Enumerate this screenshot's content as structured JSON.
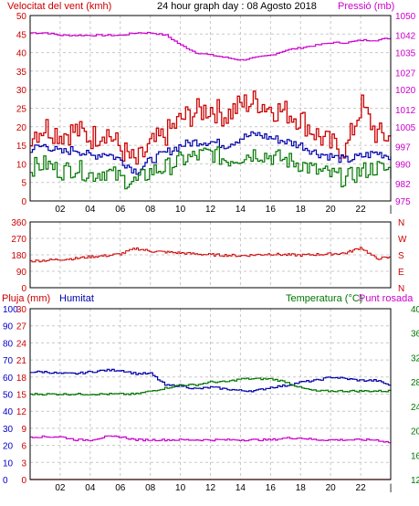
{
  "chart_data": [
    {
      "type": "line",
      "title": "24 hour graph day : 08 Agosto 2018",
      "ylabel_left": "Velocitat del vent (kmh)",
      "ylabel_right": "Pressió (mb)",
      "x_ticks": [
        "02",
        "04",
        "06",
        "08",
        "10",
        "12",
        "14",
        "16",
        "18",
        "20",
        "22",
        "|"
      ],
      "xlim": [
        0,
        24
      ],
      "ylim_left": [
        0,
        50
      ],
      "ylim_right": [
        975,
        1050
      ],
      "left_ticks": [
        "0",
        "5",
        "10",
        "15",
        "20",
        "25",
        "30",
        "35",
        "40",
        "45",
        "50"
      ],
      "right_ticks": [
        "975",
        "982",
        "990",
        "997",
        "1005",
        "1012",
        "1020",
        "1027",
        "1035",
        "1042",
        "1050"
      ],
      "grid": true,
      "series": [
        {
          "axis": "right",
          "color": "#cc00cc",
          "x": [
            0,
            1,
            2,
            3,
            4,
            5,
            6,
            7,
            8,
            9,
            10,
            11,
            12,
            13,
            14,
            15,
            16,
            17,
            18,
            19,
            20,
            21,
            22,
            23,
            24
          ],
          "values": [
            1043,
            1043,
            1042,
            1042,
            1042,
            1042,
            1042,
            1043,
            1043,
            1042,
            1038,
            1035,
            1034,
            1033,
            1032,
            1033,
            1034,
            1036,
            1037,
            1038,
            1039,
            1039,
            1040,
            1040,
            1041
          ]
        },
        {
          "axis": "left",
          "color": "#cc0000",
          "x": [
            0,
            1,
            2,
            3,
            4,
            5,
            6,
            7,
            8,
            9,
            10,
            11,
            12,
            13,
            14,
            15,
            16,
            17,
            18,
            19,
            20,
            21,
            22,
            23,
            24
          ],
          "values": [
            18,
            20,
            18,
            19,
            17,
            19,
            14,
            10,
            15,
            18,
            22,
            24,
            25,
            23,
            26,
            27,
            25,
            24,
            22,
            18,
            15,
            14,
            26,
            18,
            17
          ]
        },
        {
          "axis": "left",
          "color": "#0000aa",
          "x": [
            0,
            1,
            2,
            3,
            4,
            5,
            6,
            7,
            8,
            9,
            10,
            11,
            12,
            13,
            14,
            15,
            16,
            17,
            18,
            19,
            20,
            21,
            22,
            23,
            24
          ],
          "values": [
            14,
            15,
            13,
            14,
            12,
            13,
            11,
            8,
            11,
            13,
            15,
            16,
            16,
            15,
            17,
            18,
            17,
            16,
            15,
            13,
            12,
            11,
            12,
            13,
            12
          ]
        },
        {
          "axis": "left",
          "color": "#007700",
          "x": [
            0,
            1,
            2,
            3,
            4,
            5,
            6,
            7,
            8,
            9,
            10,
            11,
            12,
            13,
            14,
            15,
            16,
            17,
            18,
            19,
            20,
            21,
            22,
            23,
            24
          ],
          "values": [
            9,
            10,
            8,
            9,
            7,
            8,
            6,
            5,
            8,
            9,
            11,
            12,
            13,
            11,
            12,
            13,
            12,
            11,
            10,
            8,
            7,
            6,
            8,
            9,
            8
          ]
        }
      ]
    },
    {
      "type": "line",
      "ylabels_left": [
        "0",
        "90",
        "180",
        "270",
        "360"
      ],
      "ylabels_right": [
        "N",
        "E",
        "S",
        "W",
        "N"
      ],
      "xlim": [
        0,
        24
      ],
      "ylim": [
        0,
        360
      ],
      "grid": true,
      "series": [
        {
          "color": "#cc0000",
          "x": [
            0,
            1,
            2,
            3,
            4,
            5,
            6,
            7,
            8,
            9,
            10,
            11,
            12,
            13,
            14,
            15,
            16,
            17,
            18,
            19,
            20,
            21,
            22,
            23,
            24
          ],
          "values": [
            145,
            150,
            155,
            160,
            170,
            175,
            185,
            215,
            200,
            195,
            190,
            185,
            180,
            178,
            175,
            180,
            185,
            180,
            178,
            182,
            185,
            190,
            220,
            160,
            165
          ]
        }
      ]
    },
    {
      "type": "line",
      "legend_left": [
        "Pluja (mm)",
        "Humitat"
      ],
      "legend_right": [
        "Temperatura (°C)",
        "Punt rosada"
      ],
      "xlim": [
        0,
        24
      ],
      "x_ticks": [
        "02",
        "04",
        "06",
        "08",
        "10",
        "12",
        "14",
        "16",
        "18",
        "20",
        "22",
        "|"
      ],
      "pluja_ticks": [
        "0",
        "3",
        "6",
        "9",
        "12",
        "15",
        "18",
        "21",
        "24",
        "27",
        "30"
      ],
      "humitat_ticks": [
        "0",
        "10",
        "20",
        "30",
        "40",
        "50",
        "60",
        "70",
        "80",
        "90",
        "100"
      ],
      "temp_ticks": [
        "12",
        "16",
        "20",
        "24",
        "28",
        "32",
        "36",
        "40"
      ],
      "ylim_pluja": [
        0,
        30
      ],
      "ylim_humitat": [
        0,
        100
      ],
      "ylim_temp": [
        12,
        40
      ],
      "grid": true,
      "series": [
        {
          "name": "Humitat",
          "axis": "humitat",
          "color": "#0000aa",
          "x": [
            0,
            1,
            2,
            3,
            4,
            5,
            6,
            7,
            8,
            9,
            10,
            11,
            12,
            13,
            14,
            15,
            16,
            17,
            18,
            19,
            20,
            21,
            22,
            23,
            24
          ],
          "values": [
            63,
            63,
            62,
            62,
            63,
            64,
            64,
            62,
            62,
            55,
            55,
            53,
            54,
            53,
            52,
            52,
            54,
            55,
            57,
            58,
            60,
            59,
            58,
            58,
            55
          ]
        },
        {
          "name": "Temperatura",
          "axis": "temp",
          "color": "#007700",
          "x": [
            0,
            1,
            2,
            3,
            4,
            5,
            6,
            7,
            8,
            9,
            10,
            11,
            12,
            13,
            14,
            15,
            16,
            17,
            18,
            19,
            20,
            21,
            22,
            23,
            24
          ],
          "values": [
            26,
            26,
            26,
            26,
            26,
            26,
            26,
            26,
            26.5,
            27,
            27.5,
            27.5,
            28,
            28,
            28.5,
            28.5,
            28.5,
            28,
            27,
            26.5,
            26.5,
            26.5,
            26.5,
            26.5,
            26.5
          ]
        },
        {
          "name": "Punt rosada",
          "axis": "temp",
          "color": "#cc00cc",
          "x": [
            0,
            1,
            2,
            3,
            4,
            5,
            6,
            7,
            8,
            9,
            10,
            11,
            12,
            13,
            14,
            15,
            16,
            17,
            18,
            19,
            20,
            21,
            22,
            23,
            24
          ],
          "values": [
            19,
            19,
            19,
            18.5,
            18.5,
            19,
            19,
            18.5,
            18.5,
            18.5,
            18.5,
            18.5,
            18.5,
            18.5,
            18.5,
            18.5,
            18.5,
            18.8,
            18.8,
            18.5,
            18.5,
            18.5,
            18.5,
            18.5,
            18
          ]
        },
        {
          "name": "Pluja",
          "axis": "pluja",
          "color": "#cc0000",
          "x": [
            0,
            24
          ],
          "values": [
            0,
            0
          ]
        }
      ]
    }
  ]
}
